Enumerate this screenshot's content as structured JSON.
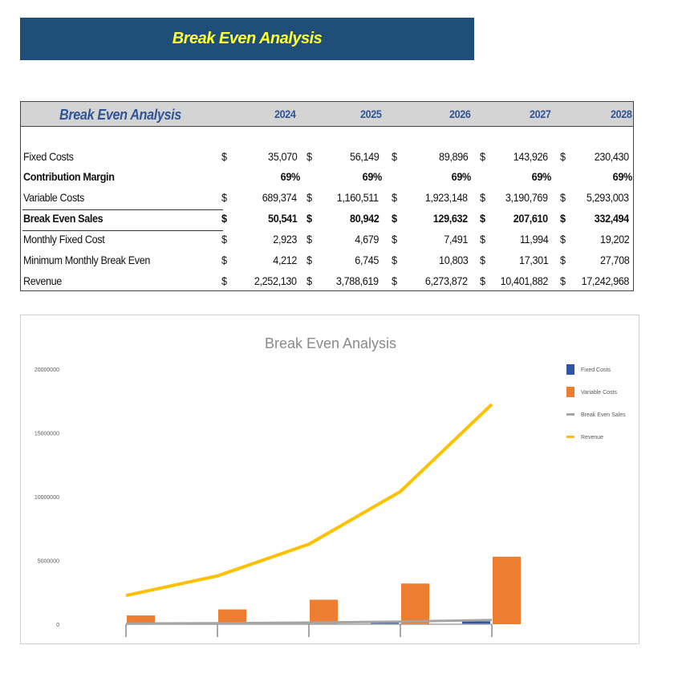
{
  "banner": {
    "title": "Break Even Analysis"
  },
  "table": {
    "title": "Break Even Analysis",
    "years": [
      "2024",
      "2025",
      "2026",
      "2027",
      "2028"
    ],
    "currency": "$",
    "rows": [
      {
        "label": "Fixed Costs",
        "bold": false,
        "currency": true,
        "values": [
          "35,070",
          "56,149",
          "89,896",
          "143,926",
          "230,430"
        ]
      },
      {
        "label": "Contribution Margin",
        "bold": true,
        "currency": false,
        "values": [
          "69%",
          "69%",
          "69%",
          "69%",
          "69%"
        ]
      },
      {
        "label": "Variable Costs",
        "bold": false,
        "currency": true,
        "values": [
          "689,374",
          "1,160,511",
          "1,923,148",
          "3,190,769",
          "5,293,003"
        ]
      },
      {
        "label": "Break Even Sales",
        "bold": true,
        "currency": true,
        "values": [
          "50,541",
          "80,942",
          "129,632",
          "207,610",
          "332,494"
        ]
      },
      {
        "label": "Monthly Fixed Cost",
        "bold": false,
        "currency": true,
        "values": [
          "2,923",
          "4,679",
          "7,491",
          "11,994",
          "19,202"
        ]
      },
      {
        "label": "Minimum Monthly Break Even",
        "bold": false,
        "currency": true,
        "values": [
          "4,212",
          "6,745",
          "10,803",
          "17,301",
          "27,708"
        ]
      },
      {
        "label": "Revenue",
        "bold": false,
        "currency": true,
        "values": [
          "2,252,130",
          "3,788,619",
          "6,273,872",
          "10,401,882",
          "17,242,968"
        ]
      }
    ]
  },
  "chart_data": {
    "type": "bar",
    "title": "Break Even Analysis",
    "xlabel": "",
    "ylabel": "",
    "ylim": [
      0,
      20000000
    ],
    "yticks": [
      "0",
      "5000000",
      "10000000",
      "15000000",
      "20000000"
    ],
    "grid": false,
    "legend_position": "right",
    "series": [
      {
        "name": "Fixed Costs",
        "kind": "bar",
        "color": "#2f55a4",
        "values": [
          35070,
          56149,
          89896,
          143926,
          230430
        ]
      },
      {
        "name": "Variable Costs",
        "kind": "bar",
        "color": "#ed7d31",
        "values": [
          689374,
          1160511,
          1923148,
          3190769,
          5293003
        ]
      },
      {
        "name": "Break Even Sales",
        "kind": "line",
        "color": "#a5a5a5",
        "values": [
          50541,
          80942,
          129632,
          207610,
          332494
        ]
      },
      {
        "name": "Revenue",
        "kind": "line",
        "color": "#ffc000",
        "values": [
          2252130,
          3788619,
          6273872,
          10401882,
          17242968
        ]
      }
    ]
  }
}
